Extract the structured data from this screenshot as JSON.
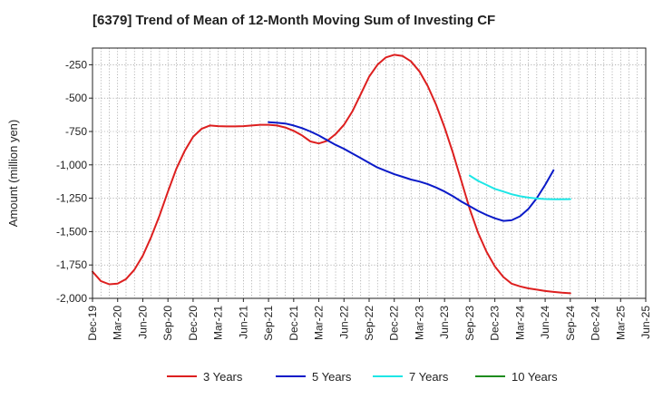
{
  "chart_data": {
    "type": "line",
    "title": "[6379]  Trend of Mean of 12-Month Moving Sum of Investing CF",
    "xlabel": "",
    "ylabel": "Amount (million yen)",
    "ylim": [
      -2000,
      -125
    ],
    "yticks": [
      -250,
      -500,
      -750,
      -1000,
      -1250,
      -1500,
      -1750,
      -2000
    ],
    "ytick_labels": [
      "-250",
      "-500",
      "-750",
      "-1,000",
      "-1,250",
      "-1,500",
      "-1,750",
      "-2,000"
    ],
    "x_range": [
      0,
      66
    ],
    "x_ticks": [
      {
        "label": "Dec-19",
        "idx": 0
      },
      {
        "label": "Mar-20",
        "idx": 3
      },
      {
        "label": "Jun-20",
        "idx": 6
      },
      {
        "label": "Sep-20",
        "idx": 9
      },
      {
        "label": "Dec-20",
        "idx": 12
      },
      {
        "label": "Mar-21",
        "idx": 15
      },
      {
        "label": "Jun-21",
        "idx": 18
      },
      {
        "label": "Sep-21",
        "idx": 21
      },
      {
        "label": "Dec-21",
        "idx": 24
      },
      {
        "label": "Mar-22",
        "idx": 27
      },
      {
        "label": "Jun-22",
        "idx": 30
      },
      {
        "label": "Sep-22",
        "idx": 33
      },
      {
        "label": "Dec-22",
        "idx": 36
      },
      {
        "label": "Mar-23",
        "idx": 39
      },
      {
        "label": "Jun-23",
        "idx": 42
      },
      {
        "label": "Sep-23",
        "idx": 45
      },
      {
        "label": "Dec-23",
        "idx": 48
      },
      {
        "label": "Mar-24",
        "idx": 51
      },
      {
        "label": "Jun-24",
        "idx": 54
      },
      {
        "label": "Sep-24",
        "idx": 57
      },
      {
        "label": "Dec-24",
        "idx": 60
      },
      {
        "label": "Mar-25",
        "idx": 63
      },
      {
        "label": "Jun-25",
        "idx": 66
      }
    ],
    "grid": true,
    "legend_position": "bottom",
    "series": [
      {
        "name": "3 Years",
        "color": "#dd1f1f",
        "start_idx": 0,
        "values": [
          -1800,
          -1870,
          -1895,
          -1890,
          -1855,
          -1785,
          -1680,
          -1540,
          -1380,
          -1200,
          -1030,
          -895,
          -790,
          -730,
          -705,
          -710,
          -712,
          -712,
          -710,
          -705,
          -700,
          -700,
          -705,
          -720,
          -745,
          -780,
          -825,
          -840,
          -820,
          -770,
          -700,
          -600,
          -470,
          -340,
          -250,
          -195,
          -175,
          -185,
          -225,
          -300,
          -410,
          -550,
          -720,
          -910,
          -1120,
          -1330,
          -1510,
          -1650,
          -1760,
          -1840,
          -1890,
          -1910,
          -1925,
          -1935,
          -1945,
          -1952,
          -1958,
          -1962
        ]
      },
      {
        "name": "5 Years",
        "color": "#0a1ac8",
        "start_idx": 21,
        "values": [
          -680,
          -685,
          -690,
          -705,
          -725,
          -750,
          -780,
          -815,
          -850,
          -880,
          -915,
          -950,
          -985,
          -1020,
          -1045,
          -1070,
          -1090,
          -1110,
          -1125,
          -1145,
          -1170,
          -1200,
          -1235,
          -1275,
          -1310,
          -1345,
          -1375,
          -1400,
          -1420,
          -1415,
          -1385,
          -1330,
          -1250,
          -1150,
          -1040
        ]
      },
      {
        "name": "7 Years",
        "color": "#1ee6e6",
        "start_idx": 45,
        "values": [
          -1080,
          -1120,
          -1150,
          -1180,
          -1200,
          -1220,
          -1235,
          -1245,
          -1252,
          -1256,
          -1258,
          -1258,
          -1257
        ]
      },
      {
        "name": "10 Years",
        "color": "#1e8c1e",
        "start_idx": 0,
        "values": []
      }
    ]
  }
}
